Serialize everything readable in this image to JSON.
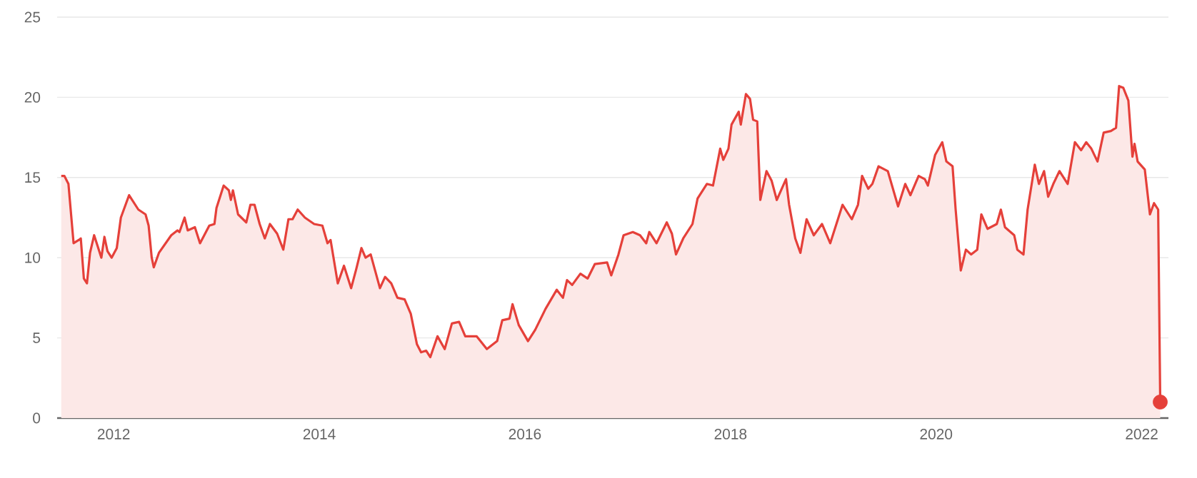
{
  "chart_data": {
    "type": "area",
    "xlim": [
      2011.45,
      2022.26
    ],
    "ylim": [
      0,
      25
    ],
    "xticks": [
      2012,
      2014,
      2016,
      2018,
      2020,
      2022
    ],
    "yticks": [
      0,
      5,
      10,
      15,
      20,
      25
    ],
    "grid": "y",
    "series": [
      {
        "color": "#e5403a",
        "x": [
          2011.49,
          2011.52,
          2011.56,
          2011.61,
          2011.66,
          2011.68,
          2011.71,
          2011.74,
          2011.77,
          2011.81,
          2011.88,
          2011.91,
          2011.94,
          2011.98,
          2012.03,
          2012.07,
          2012.15,
          2012.24,
          2012.31,
          2012.34,
          2012.37,
          2012.39,
          2012.44,
          2012.56,
          2012.62,
          2012.64,
          2012.69,
          2012.72,
          2012.79,
          2012.84,
          2012.93,
          2012.98,
          2013.0,
          2013.07,
          2013.12,
          2013.14,
          2013.16,
          2013.21,
          2013.29,
          2013.33,
          2013.37,
          2013.42,
          2013.47,
          2013.52,
          2013.59,
          2013.65,
          2013.7,
          2013.74,
          2013.79,
          2013.86,
          2013.95,
          2014.03,
          2014.08,
          2014.11,
          2014.18,
          2014.24,
          2014.31,
          2014.36,
          2014.41,
          2014.45,
          2014.5,
          2014.59,
          2014.64,
          2014.7,
          2014.76,
          2014.83,
          2014.89,
          2014.95,
          2014.99,
          2015.04,
          2015.08,
          2015.15,
          2015.22,
          2015.29,
          2015.36,
          2015.42,
          2015.53,
          2015.63,
          2015.73,
          2015.78,
          2015.85,
          2015.88,
          2015.94,
          2016.03,
          2016.1,
          2016.2,
          2016.31,
          2016.37,
          2016.41,
          2016.46,
          2016.54,
          2016.61,
          2016.68,
          2016.8,
          2016.84,
          2016.91,
          2016.96,
          2017.05,
          2017.12,
          2017.18,
          2017.21,
          2017.28,
          2017.38,
          2017.43,
          2017.47,
          2017.54,
          2017.63,
          2017.68,
          2017.77,
          2017.83,
          2017.9,
          2017.93,
          2017.98,
          2018.01,
          2018.08,
          2018.1,
          2018.15,
          2018.19,
          2018.22,
          2018.26,
          2018.29,
          2018.35,
          2018.4,
          2018.45,
          2018.54,
          2018.57,
          2018.63,
          2018.68,
          2018.74,
          2018.81,
          2018.89,
          2018.97,
          2019.09,
          2019.18,
          2019.24,
          2019.28,
          2019.34,
          2019.38,
          2019.44,
          2019.53,
          2019.63,
          2019.7,
          2019.75,
          2019.83,
          2019.89,
          2019.92,
          2019.99,
          2020.06,
          2020.1,
          2020.16,
          2020.19,
          2020.24,
          2020.29,
          2020.34,
          2020.4,
          2020.44,
          2020.5,
          2020.59,
          2020.63,
          2020.67,
          2020.76,
          2020.79,
          2020.85,
          2020.89,
          2020.96,
          2021.0,
          2021.05,
          2021.09,
          2021.14,
          2021.2,
          2021.28,
          2021.35,
          2021.41,
          2021.46,
          2021.51,
          2021.57,
          2021.63,
          2021.7,
          2021.75,
          2021.78,
          2021.82,
          2021.87,
          2021.91,
          2021.93,
          2021.96,
          2022.03,
          2022.08,
          2022.12,
          2022.16,
          2022.18
        ],
        "values": [
          15.1,
          15.1,
          14.6,
          10.9,
          11.1,
          11.2,
          8.7,
          8.4,
          10.3,
          11.4,
          10.0,
          11.3,
          10.4,
          10.0,
          10.6,
          12.5,
          13.9,
          13.0,
          12.7,
          12.0,
          10.0,
          9.4,
          10.3,
          11.4,
          11.7,
          11.6,
          12.5,
          11.7,
          11.9,
          10.9,
          12.0,
          12.1,
          13.1,
          14.5,
          14.2,
          13.6,
          14.2,
          12.7,
          12.2,
          13.3,
          13.3,
          12.1,
          11.2,
          12.1,
          11.5,
          10.5,
          12.4,
          12.4,
          13.0,
          12.5,
          12.1,
          12.0,
          10.9,
          11.1,
          8.4,
          9.5,
          8.1,
          9.3,
          10.6,
          10.0,
          10.2,
          8.1,
          8.8,
          8.4,
          7.5,
          7.4,
          6.5,
          4.6,
          4.1,
          4.2,
          3.8,
          5.1,
          4.3,
          5.9,
          6.0,
          5.1,
          5.1,
          4.3,
          4.8,
          6.1,
          6.2,
          7.1,
          5.8,
          4.8,
          5.5,
          6.8,
          8.0,
          7.5,
          8.6,
          8.3,
          9.0,
          8.7,
          9.6,
          9.7,
          8.9,
          10.2,
          11.4,
          11.6,
          11.4,
          10.9,
          11.6,
          10.9,
          12.2,
          11.5,
          10.2,
          11.2,
          12.1,
          13.7,
          14.6,
          14.5,
          16.8,
          16.1,
          16.8,
          18.3,
          19.1,
          18.3,
          20.2,
          19.9,
          18.6,
          18.5,
          13.6,
          15.4,
          14.8,
          13.6,
          14.9,
          13.3,
          11.2,
          10.3,
          12.4,
          11.4,
          12.1,
          10.9,
          13.3,
          12.4,
          13.3,
          15.1,
          14.3,
          14.6,
          15.7,
          15.4,
          13.2,
          14.6,
          13.9,
          15.1,
          14.9,
          14.5,
          16.4,
          17.2,
          16.0,
          15.7,
          13.0,
          9.2,
          10.5,
          10.2,
          10.5,
          12.7,
          11.8,
          12.1,
          13.0,
          11.9,
          11.4,
          10.5,
          10.2,
          13.0,
          15.8,
          14.6,
          15.4,
          13.8,
          14.6,
          15.4,
          14.6,
          17.2,
          16.7,
          17.2,
          16.8,
          16.0,
          17.8,
          17.9,
          18.1,
          20.7,
          20.6,
          19.8,
          16.3,
          17.1,
          16.0,
          15.5,
          12.7,
          13.4,
          13.0,
          1.0
        ]
      },
      {
        "type": "scatter",
        "color": "#e5403a",
        "marker": "circle",
        "x": [
          2022.18
        ],
        "values": [
          1.0
        ]
      }
    ]
  }
}
